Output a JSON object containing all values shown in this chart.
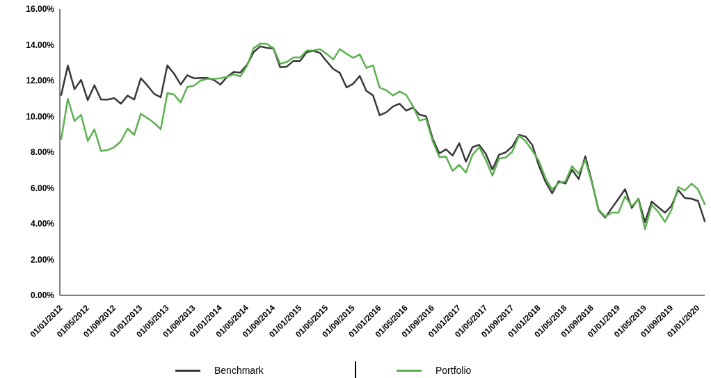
{
  "chart_data": {
    "type": "line",
    "categories": [
      "01/01/2012",
      null,
      null,
      null,
      "01/05/2012",
      null,
      null,
      null,
      "01/09/2012",
      null,
      null,
      null,
      "01/01/2013",
      null,
      null,
      null,
      "01/05/2013",
      null,
      null,
      null,
      "01/09/2013",
      null,
      null,
      null,
      "01/01/2014",
      null,
      null,
      null,
      "01/05/2014",
      null,
      null,
      null,
      "01/09/2014",
      null,
      null,
      null,
      "01/01/2015",
      null,
      null,
      null,
      "01/05/2015",
      null,
      null,
      null,
      "01/09/2015",
      null,
      null,
      null,
      "01/01/2016",
      null,
      null,
      null,
      "01/05/2016",
      null,
      null,
      null,
      "01/09/2016",
      null,
      null,
      null,
      "01/01/2017",
      null,
      null,
      null,
      "01/05/2017",
      null,
      null,
      null,
      "01/09/2017",
      null,
      null,
      null,
      "01/01/2018",
      null,
      null,
      null,
      "01/05/2018",
      null,
      null,
      null,
      "01/09/2018",
      null,
      null,
      null,
      "01/01/2019",
      null,
      null,
      null,
      "01/05/2019",
      null,
      null,
      null,
      "01/09/2019",
      null,
      null,
      null,
      "01/01/2020",
      null
    ],
    "series": [
      {
        "name": "Benchmark",
        "color": "#383838",
        "values": [
          11.2,
          12.84,
          11.52,
          12.04,
          10.91,
          11.74,
          10.94,
          10.94,
          11.02,
          10.71,
          11.16,
          10.94,
          12.13,
          11.72,
          11.26,
          11.07,
          12.85,
          12.39,
          11.78,
          12.3,
          12.13,
          12.15,
          12.15,
          12.04,
          11.78,
          12.21,
          12.49,
          12.45,
          12.88,
          13.59,
          13.91,
          13.83,
          13.79,
          12.75,
          12.78,
          13.1,
          13.1,
          13.59,
          13.66,
          13.55,
          13.08,
          12.65,
          12.43,
          11.62,
          11.82,
          12.26,
          11.43,
          11.17,
          10.06,
          10.23,
          10.55,
          10.71,
          10.32,
          10.49,
          10.1,
          10.01,
          8.74,
          7.93,
          8.16,
          7.81,
          8.5,
          7.47,
          8.28,
          8.41,
          7.9,
          7.03,
          7.86,
          7.99,
          8.32,
          8.97,
          8.87,
          8.41,
          7.25,
          6.34,
          5.7,
          6.38,
          6.24,
          7.02,
          6.5,
          7.77,
          6.34,
          4.75,
          4.34,
          4.88,
          5.4,
          5.93,
          4.88,
          5.4,
          4.08,
          5.24,
          4.92,
          4.62,
          5.01,
          5.89,
          5.44,
          5.4,
          5.27,
          4.14
        ]
      },
      {
        "name": "Portfolio",
        "color": "#5cb04f",
        "values": [
          8.74,
          10.98,
          9.74,
          10.09,
          8.63,
          9.28,
          8.07,
          8.12,
          8.28,
          8.61,
          9.32,
          8.97,
          10.14,
          9.9,
          9.64,
          9.28,
          11.3,
          11.22,
          10.78,
          11.64,
          11.72,
          12.0,
          12.1,
          12.1,
          12.13,
          12.21,
          12.36,
          12.23,
          12.82,
          13.81,
          14.07,
          14.05,
          13.81,
          12.94,
          13.04,
          13.29,
          13.29,
          13.68,
          13.68,
          13.76,
          13.5,
          13.18,
          13.76,
          13.5,
          13.27,
          13.46,
          12.71,
          12.85,
          11.61,
          11.46,
          11.17,
          11.39,
          11.2,
          10.58,
          9.77,
          9.86,
          8.61,
          7.73,
          7.75,
          6.95,
          7.29,
          6.86,
          7.86,
          8.28,
          7.57,
          6.69,
          7.64,
          7.7,
          8.03,
          8.93,
          8.61,
          8.09,
          7.51,
          6.54,
          5.92,
          6.28,
          6.37,
          7.21,
          6.8,
          7.57,
          6.28,
          4.79,
          4.4,
          4.62,
          4.62,
          5.53,
          4.98,
          5.37,
          3.69,
          5.05,
          4.66,
          4.1,
          4.79,
          6.05,
          5.86,
          6.24,
          5.92,
          5.09
        ]
      }
    ],
    "ylim": [
      0,
      16
    ],
    "yticks": [
      {
        "value": 0,
        "label": "0.00%"
      },
      {
        "value": 2,
        "label": "2.00%"
      },
      {
        "value": 4,
        "label": "4.00%"
      },
      {
        "value": 6,
        "label": "6.00%"
      },
      {
        "value": 8,
        "label": "8.00%"
      },
      {
        "value": 10,
        "label": "10.00%"
      },
      {
        "value": 12,
        "label": "12.00%"
      },
      {
        "value": 14,
        "label": "14.00%"
      },
      {
        "value": 16,
        "label": "16.00%"
      }
    ],
    "grid": false,
    "legend": "bottom",
    "marker": "none",
    "line_style": "solid"
  }
}
